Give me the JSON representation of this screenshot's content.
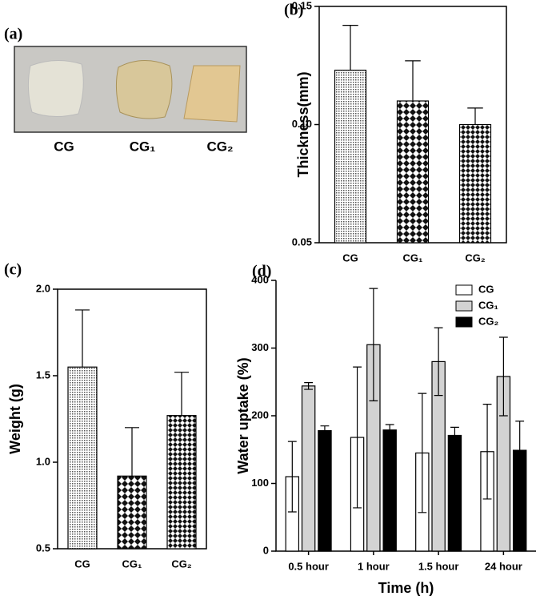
{
  "photo": {
    "panel_label": "(a)",
    "samples": [
      "CG",
      "CG₁",
      "CG₂"
    ]
  },
  "chart_data": [
    {
      "type": "bar",
      "panel_label": "(b)",
      "y_label": "Thickness(mm)",
      "categories": [
        "CG",
        "CG₁",
        "CG₂"
      ],
      "values": [
        0.123,
        0.11,
        0.1
      ],
      "errors": [
        0.019,
        0.017,
        0.007
      ],
      "ylim": [
        0.05,
        0.15
      ],
      "yticks": [
        0.05,
        {
          "value": 0.1,
          "label": "0.10"
        },
        0.15
      ]
    },
    {
      "type": "bar",
      "panel_label": "(c)",
      "y_label": "Weight (g)",
      "categories": [
        "CG",
        "CG₁",
        "CG₂"
      ],
      "values": [
        1.55,
        0.92,
        1.27
      ],
      "errors": [
        0.33,
        0.28,
        0.25
      ],
      "ylim": [
        0.5,
        2.0
      ],
      "yticks": [
        0.5,
        {
          "value": 1,
          "label": "1.0"
        },
        1.5,
        {
          "value": 2,
          "label": "2.0"
        }
      ]
    },
    {
      "type": "grouped-bar",
      "panel_label": "(d)",
      "y_label": "Water uptake (%)",
      "x_label": "Time (h)",
      "categories": [
        "0.5 hour",
        "1 hour",
        "1.5 hour",
        "24 hour"
      ],
      "series": [
        {
          "name": "CG",
          "color": "#ffffff",
          "values": [
            110,
            168,
            145,
            147
          ],
          "errors": [
            52,
            104,
            88,
            70
          ]
        },
        {
          "name": "CG₁",
          "color": "#d3d3d3",
          "values": [
            244,
            305,
            280,
            258
          ],
          "errors": [
            5,
            83,
            50,
            58
          ]
        },
        {
          "name": "CG₂",
          "color": "#000000",
          "values": [
            178,
            179,
            171,
            149
          ],
          "errors": [
            7,
            8,
            12,
            43
          ]
        }
      ],
      "ylim": [
        0,
        400
      ],
      "yticks": [
        0,
        100,
        200,
        300,
        400
      ],
      "legend": "top-right"
    }
  ]
}
